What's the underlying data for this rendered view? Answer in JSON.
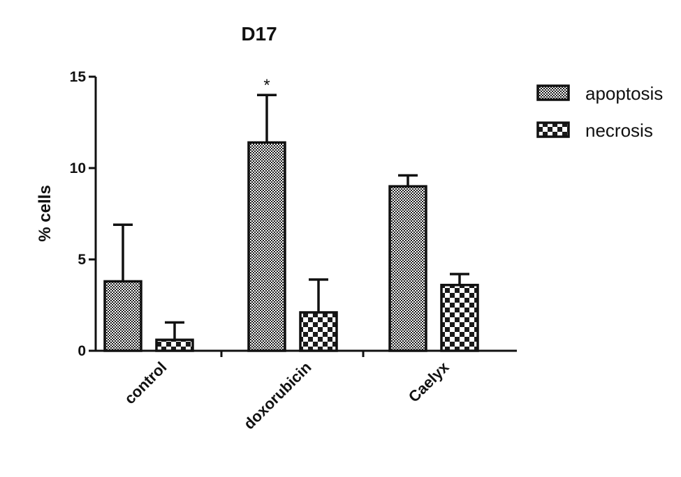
{
  "chart_data": {
    "type": "bar",
    "title": "D17",
    "xlabel": "",
    "ylabel": "% cells",
    "ylim": [
      0,
      15
    ],
    "yticks": [
      0,
      5,
      10,
      15
    ],
    "categories": [
      "control",
      "doxorubicin",
      "Caelyx"
    ],
    "series": [
      {
        "name": "apoptosis",
        "values": [
          3.8,
          11.4,
          9.0
        ],
        "errors": [
          3.1,
          2.6,
          0.6
        ],
        "pattern": "fine-check"
      },
      {
        "name": "necrosis",
        "values": [
          0.6,
          2.1,
          3.6
        ],
        "errors": [
          0.95,
          1.8,
          0.6
        ],
        "pattern": "coarse-check"
      }
    ],
    "annotations": [
      {
        "text": "*",
        "category": "doxorubicin",
        "series": "apoptosis"
      }
    ],
    "legend_position": "top-right",
    "grid": false,
    "colors": {
      "bar_stroke": "#111111",
      "pattern_dark": "#1a1a1a",
      "pattern_light": "#ffffff"
    }
  }
}
